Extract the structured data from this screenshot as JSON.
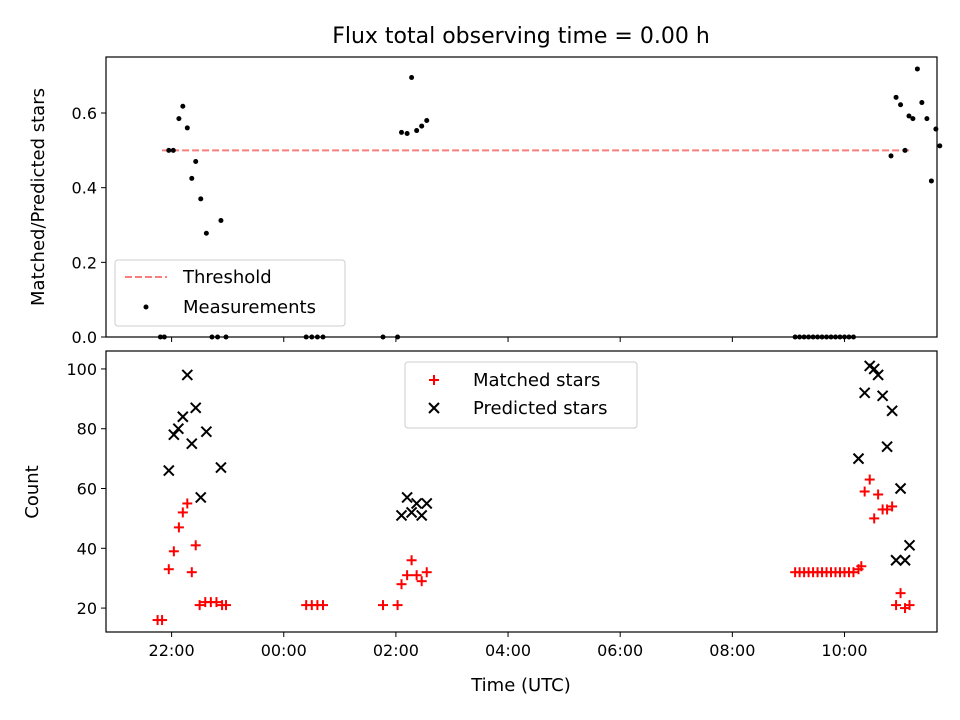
{
  "title": "Flux total observing time = 0.00 h",
  "xlabel": "Time (UTC)",
  "chart_data": [
    {
      "type": "scatter",
      "ylabel": "Matched/Predicted stars",
      "xlim": [
        20.83,
        35.65
      ],
      "ylim": [
        0,
        0.75
      ],
      "x_ticks": [
        {
          "value": 22,
          "label": "22:00"
        },
        {
          "value": 24,
          "label": "00:00"
        },
        {
          "value": 26,
          "label": "02:00"
        },
        {
          "value": 28,
          "label": "04:00"
        },
        {
          "value": 30,
          "label": "06:00"
        },
        {
          "value": 32,
          "label": "08:00"
        },
        {
          "value": 34,
          "label": "10:00"
        }
      ],
      "y_ticks": [
        0.0,
        0.2,
        0.4,
        0.6
      ],
      "y_tick_labels": [
        "0.0",
        "0.2",
        "0.4",
        "0.6"
      ],
      "threshold": {
        "name": "Threshold",
        "y": 0.5,
        "x_range": [
          21.83,
          35.2
        ],
        "color": "#f87d7d"
      },
      "series": [
        {
          "name": "Measurements",
          "marker": "dot",
          "color": "#000000",
          "points": [
            [
              21.8,
              0
            ],
            [
              21.87,
              0
            ],
            [
              21.95,
              0.5
            ],
            [
              22.03,
              0.5
            ],
            [
              22.13,
              0.585
            ],
            [
              22.2,
              0.618
            ],
            [
              22.28,
              0.56
            ],
            [
              22.36,
              0.425
            ],
            [
              22.43,
              0.47
            ],
            [
              22.52,
              0.37
            ],
            [
              22.62,
              0.278
            ],
            [
              22.72,
              0
            ],
            [
              22.82,
              0
            ],
            [
              22.88,
              0.312
            ],
            [
              22.97,
              0
            ],
            [
              24.4,
              0
            ],
            [
              24.5,
              0
            ],
            [
              24.6,
              0
            ],
            [
              24.7,
              0
            ],
            [
              25.77,
              0
            ],
            [
              26.03,
              0
            ],
            [
              26.1,
              0.548
            ],
            [
              26.2,
              0.545
            ],
            [
              26.28,
              0.695
            ],
            [
              26.37,
              0.553
            ],
            [
              26.46,
              0.565
            ],
            [
              26.55,
              0.58
            ],
            [
              34.83,
              0.485
            ],
            [
              34.92,
              0.642
            ],
            [
              35.0,
              0.622
            ],
            [
              35.08,
              0.5
            ],
            [
              35.15,
              0.592
            ],
            [
              35.22,
              0.585
            ],
            [
              35.3,
              0.718
            ],
            [
              35.38,
              0.628
            ],
            [
              35.47,
              0.585
            ],
            [
              35.55,
              0.418
            ],
            [
              35.63,
              0.557
            ],
            [
              35.7,
              0.512
            ]
          ]
        }
      ],
      "zero_points_extra": [
        33.12,
        33.2,
        33.28,
        33.36,
        33.44,
        33.52,
        33.6,
        33.68,
        33.76,
        33.84,
        33.92,
        34.0,
        34.08,
        34.16
      ],
      "legend": {
        "position": "lower-left",
        "entries": [
          "Threshold",
          "Measurements"
        ]
      }
    },
    {
      "type": "scatter",
      "ylabel": "Count",
      "xlim": [
        20.83,
        35.65
      ],
      "ylim": [
        12,
        106
      ],
      "x_ticks": [
        {
          "value": 22,
          "label": "22:00"
        },
        {
          "value": 24,
          "label": "00:00"
        },
        {
          "value": 26,
          "label": "02:00"
        },
        {
          "value": 28,
          "label": "04:00"
        },
        {
          "value": 30,
          "label": "06:00"
        },
        {
          "value": 32,
          "label": "08:00"
        },
        {
          "value": 34,
          "label": "10:00"
        }
      ],
      "y_ticks": [
        20,
        40,
        60,
        80,
        100
      ],
      "series": [
        {
          "name": "Matched stars",
          "marker": "plus",
          "color": "#ff0000",
          "points": [
            [
              21.75,
              16
            ],
            [
              21.83,
              16
            ],
            [
              21.95,
              33
            ],
            [
              22.04,
              39
            ],
            [
              22.13,
              47
            ],
            [
              22.2,
              52
            ],
            [
              22.28,
              55
            ],
            [
              22.36,
              32
            ],
            [
              22.43,
              41
            ],
            [
              22.5,
              21
            ],
            [
              22.6,
              22
            ],
            [
              22.7,
              22
            ],
            [
              22.8,
              22
            ],
            [
              22.9,
              21
            ],
            [
              22.97,
              21
            ],
            [
              24.4,
              21
            ],
            [
              24.5,
              21
            ],
            [
              24.6,
              21
            ],
            [
              24.7,
              21
            ],
            [
              25.77,
              21
            ],
            [
              26.03,
              21
            ],
            [
              26.1,
              28
            ],
            [
              26.2,
              31
            ],
            [
              26.28,
              36
            ],
            [
              26.37,
              31
            ],
            [
              26.46,
              29
            ],
            [
              26.55,
              32
            ],
            [
              33.12,
              32
            ],
            [
              33.2,
              32
            ],
            [
              33.28,
              32
            ],
            [
              33.36,
              32
            ],
            [
              33.44,
              32
            ],
            [
              33.52,
              32
            ],
            [
              33.6,
              32
            ],
            [
              33.68,
              32
            ],
            [
              33.76,
              32
            ],
            [
              33.84,
              32
            ],
            [
              33.92,
              32
            ],
            [
              34.0,
              32
            ],
            [
              34.08,
              32
            ],
            [
              34.16,
              32
            ],
            [
              34.25,
              33
            ],
            [
              34.3,
              34
            ],
            [
              34.36,
              59
            ],
            [
              34.45,
              63
            ],
            [
              34.53,
              50
            ],
            [
              34.6,
              58
            ],
            [
              34.68,
              53
            ],
            [
              34.76,
              53
            ],
            [
              34.85,
              54
            ],
            [
              34.92,
              21
            ],
            [
              35.0,
              25
            ],
            [
              35.08,
              20
            ],
            [
              35.16,
              21
            ]
          ]
        },
        {
          "name": "Predicted stars",
          "marker": "x",
          "color": "#000000",
          "points": [
            [
              21.95,
              66
            ],
            [
              22.04,
              78
            ],
            [
              22.12,
              80
            ],
            [
              22.2,
              84
            ],
            [
              22.28,
              98
            ],
            [
              22.36,
              75
            ],
            [
              22.43,
              87
            ],
            [
              22.52,
              57
            ],
            [
              22.62,
              79
            ],
            [
              22.88,
              67
            ],
            [
              26.1,
              51
            ],
            [
              26.2,
              57
            ],
            [
              26.28,
              52
            ],
            [
              26.37,
              55
            ],
            [
              26.46,
              51
            ],
            [
              26.55,
              55
            ],
            [
              34.25,
              70
            ],
            [
              34.36,
              92
            ],
            [
              34.45,
              101
            ],
            [
              34.53,
              100
            ],
            [
              34.6,
              98
            ],
            [
              34.68,
              91
            ],
            [
              34.76,
              74
            ],
            [
              34.85,
              86
            ],
            [
              34.92,
              36
            ],
            [
              35.0,
              60
            ],
            [
              35.08,
              36
            ],
            [
              35.16,
              41
            ]
          ]
        }
      ],
      "legend": {
        "position": "upper-center",
        "entries": [
          "Matched stars",
          "Predicted stars"
        ]
      }
    }
  ]
}
